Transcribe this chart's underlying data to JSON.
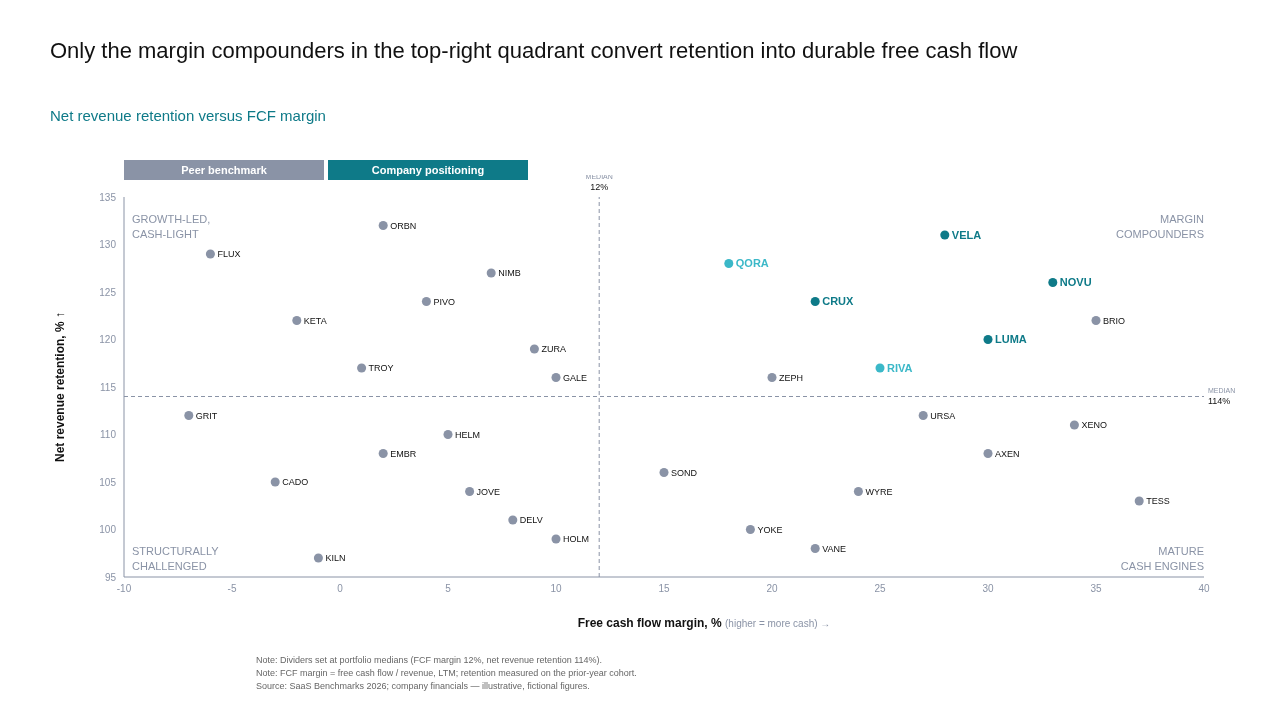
{
  "chart_data": {
    "type": "scatter",
    "title": "Only the margin compounders in the top-right quadrant convert retention into durable free cash flow",
    "subtitle": "Net revenue retention versus FCF margin",
    "xlabel": "Free cash flow margin, %  (higher = more cash) →",
    "ylabel": "Net revenue retention, % ↑",
    "xlim": [
      -10,
      40
    ],
    "xticks": [
      -10,
      -5,
      0,
      5,
      10,
      15,
      20,
      25,
      30,
      35,
      40
    ],
    "ylim": [
      95,
      135
    ],
    "yticks": [
      95,
      100,
      105,
      110,
      115,
      120,
      125,
      130,
      135
    ],
    "marker": "circle",
    "legend": "top left",
    "series": [
      {
        "name": "Peer benchmark",
        "color": "#8a93a6",
        "x": [
          2,
          -6,
          7,
          4,
          -2,
          9,
          1,
          10,
          -7,
          5,
          2,
          -3,
          6,
          8,
          10,
          -1,
          20,
          15,
          19,
          22,
          24,
          27,
          30,
          34,
          37,
          35
        ],
        "values": [
          132,
          129,
          127,
          124,
          122,
          119,
          117,
          116,
          112,
          110,
          108,
          105,
          104,
          101,
          99,
          97,
          116,
          106,
          100,
          98,
          104,
          112,
          108,
          111,
          103,
          122
        ]
      },
      {
        "name": "Company positioning",
        "color": "#0e7a88",
        "x": [
          28,
          33,
          22,
          30
        ],
        "values": [
          131,
          126,
          124,
          120
        ]
      },
      {
        "color": "#3bb8c8",
        "x": [
          18,
          25
        ],
        "values": [
          128,
          117
        ]
      }
    ],
    "ref_lines": [
      {
        "axis": "x",
        "value": 12,
        "label": "MEDIAN\n12%",
        "line_style": "dashed",
        "color": "#8a93a6"
      },
      {
        "axis": "y",
        "value": 114,
        "label": "MEDIAN\n114%",
        "line_style": "dashed",
        "color": "#8a93a6"
      }
    ],
    "annotations": [
      "GROWTH-LED,\nCASH-LIGHT",
      "MARGIN\nCOMPOUNDERS",
      "STRUCTURALLY\nCHALLENGED",
      "MATURE\nCASH ENGINES",
      {
        "text": "ORBN",
        "x": 2,
        "y": 132
      },
      {
        "text": "FLUX",
        "x": -6,
        "y": 129
      },
      {
        "text": "NIMB",
        "x": 7,
        "y": 127
      },
      {
        "text": "PIVO",
        "x": 4,
        "y": 124
      },
      {
        "text": "KETA",
        "x": -2,
        "y": 122
      },
      {
        "text": "ZURA",
        "x": 9,
        "y": 119
      },
      {
        "text": "TROY",
        "x": 1,
        "y": 117
      },
      {
        "text": "GALE",
        "x": 10,
        "y": 116
      },
      {
        "text": "GRIT",
        "x": -7,
        "y": 112
      },
      {
        "text": "HELM",
        "x": 5,
        "y": 110
      },
      {
        "text": "EMBR",
        "x": 2,
        "y": 108
      },
      {
        "text": "CADO",
        "x": -3,
        "y": 105
      },
      {
        "text": "JOVE",
        "x": 6,
        "y": 104
      },
      {
        "text": "DELV",
        "x": 8,
        "y": 101
      },
      {
        "text": "HOLM",
        "x": 10,
        "y": 99
      },
      {
        "text": "KILN",
        "x": -1,
        "y": 97
      },
      {
        "text": "ZEPH",
        "x": 20,
        "y": 116
      },
      {
        "text": "SOND",
        "x": 15,
        "y": 106
      },
      {
        "text": "YOKE",
        "x": 19,
        "y": 100
      },
      {
        "text": "VANE",
        "x": 22,
        "y": 98
      },
      {
        "text": "WYRE",
        "x": 24,
        "y": 104
      },
      {
        "text": "URSA",
        "x": 27,
        "y": 112
      },
      {
        "text": "AXEN",
        "x": 30,
        "y": 108
      },
      {
        "text": "XENO",
        "x": 34,
        "y": 111
      },
      {
        "text": "TESS",
        "x": 37,
        "y": 103
      },
      {
        "text": "BRIO",
        "x": 35,
        "y": 122
      },
      {
        "text": "VELA",
        "x": 28,
        "y": 131
      },
      {
        "text": "NOVU",
        "x": 33,
        "y": 126
      },
      {
        "text": "CRUX",
        "x": 22,
        "y": 124
      },
      {
        "text": "LUMA",
        "x": 30,
        "y": 120
      },
      {
        "text": "QORA",
        "x": 18,
        "y": 128
      },
      {
        "text": "RIVA",
        "x": 25,
        "y": 117
      },
      "Note: Dividers set at portfolio medians (FCF margin 12%, net revenue retention 114%).",
      "Note: FCF margin = free cash flow / revenue, LTM; retention measured on the prior-year cohort.",
      "Source: SaaS Benchmarks 2026; company financials — illustrative, fictional figures."
    ]
  }
}
